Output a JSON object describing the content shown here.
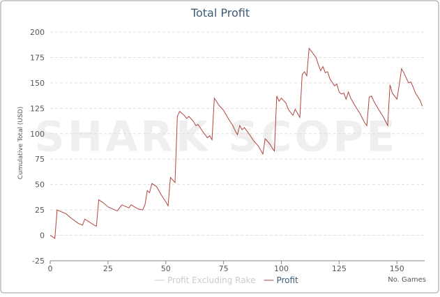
{
  "chart_data": {
    "type": "line",
    "title": "Total Profit",
    "watermark": "SHARK SCOPE",
    "x_label": "No. Games",
    "y_label": "Cumulative Total (USD)",
    "xlim": [
      0,
      162
    ],
    "xticks": [
      0,
      25,
      50,
      75,
      100,
      125,
      150
    ],
    "ylim": [
      -25,
      200
    ],
    "yticks": [
      -25,
      0,
      25,
      50,
      75,
      100,
      125,
      150,
      175,
      200
    ],
    "grid": true,
    "x": [
      0,
      2,
      3,
      7,
      9,
      12,
      14,
      15,
      19,
      20,
      21,
      23,
      25,
      27,
      29,
      31,
      34,
      35,
      38,
      40,
      41,
      42,
      43,
      44,
      46,
      48,
      50,
      51,
      52,
      54,
      55,
      56,
      58,
      59,
      60,
      62,
      63,
      64,
      66,
      68,
      69,
      70,
      71,
      73,
      75,
      77,
      79,
      80,
      81,
      82,
      83,
      84,
      86,
      88,
      90,
      92,
      93,
      95,
      96,
      97,
      98,
      99,
      100,
      102,
      103,
      105,
      106,
      107,
      108,
      109,
      110,
      111,
      112,
      113,
      114,
      115,
      116,
      117,
      118,
      119,
      120,
      121,
      123,
      124,
      125,
      126,
      127,
      128,
      129,
      130,
      132,
      134,
      136,
      137,
      138,
      139,
      140,
      142,
      144,
      146,
      147,
      148,
      150,
      151,
      152,
      153,
      154,
      155,
      156,
      157,
      158,
      160,
      161
    ],
    "series": [
      {
        "name": "Profit Excluding Rake",
        "color": "#cccccc",
        "visible": false
      },
      {
        "name": "Profit",
        "color": "#b0443f",
        "visible": true,
        "values": [
          0,
          -3,
          25,
          21,
          17,
          12,
          10,
          16,
          10,
          9,
          35,
          32,
          28,
          26,
          24,
          30,
          27,
          30,
          26,
          25,
          30,
          44,
          42,
          51,
          48,
          40,
          33,
          29,
          57,
          52,
          117,
          122,
          118,
          115,
          117,
          112,
          108,
          109,
          102,
          96,
          98,
          94,
          135,
          128,
          123,
          115,
          108,
          103,
          99,
          108,
          104,
          106,
          100,
          93,
          88,
          80,
          95,
          90,
          86,
          83,
          137,
          132,
          135,
          130,
          124,
          118,
          124,
          120,
          116,
          158,
          161,
          157,
          184,
          181,
          178,
          175,
          168,
          162,
          166,
          160,
          161,
          154,
          147,
          149,
          141,
          139,
          140,
          134,
          141,
          135,
          127,
          120,
          111,
          108,
          136,
          137,
          132,
          124,
          117,
          108,
          148,
          140,
          134,
          148,
          164,
          160,
          155,
          150,
          151,
          146,
          140,
          133,
          127
        ]
      }
    ]
  }
}
